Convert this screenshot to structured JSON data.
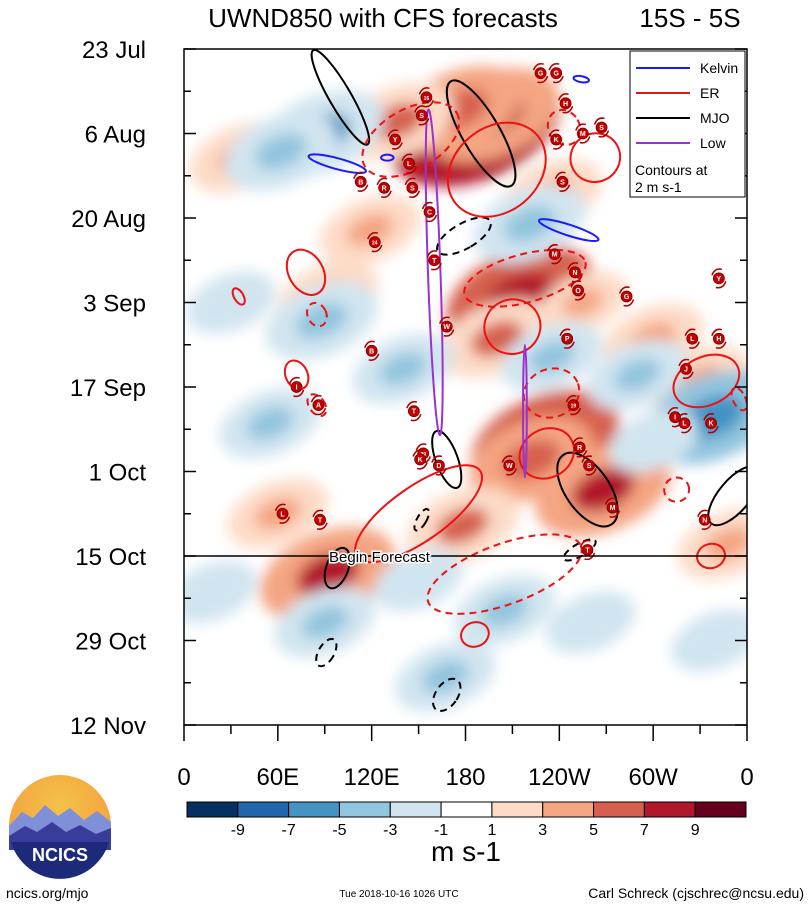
{
  "chart_data": {
    "type": "hovmoller-heatmap",
    "title": "UWND850 with CFS forecasts",
    "region": "15S - 5S",
    "variable": "850-hPa zonal wind anomaly",
    "x_axis": {
      "label": "",
      "range_deg_east": [
        0,
        360
      ],
      "ticks": [
        {
          "lon": 0,
          "label": "0"
        },
        {
          "lon": 60,
          "label": "60E"
        },
        {
          "lon": 120,
          "label": "120E"
        },
        {
          "lon": 180,
          "label": "180"
        },
        {
          "lon": 240,
          "label": "120W"
        },
        {
          "lon": 300,
          "label": "60W"
        },
        {
          "lon": 360,
          "label": "0"
        }
      ]
    },
    "y_axis": {
      "label": "",
      "unit": "days since 23 Jul",
      "range": [
        0,
        112
      ],
      "ticks": [
        {
          "day": 0,
          "label": "23 Jul"
        },
        {
          "day": 14,
          "label": "6 Aug"
        },
        {
          "day": 28,
          "label": "20 Aug"
        },
        {
          "day": 42,
          "label": "3 Sep"
        },
        {
          "day": 56,
          "label": "17 Sep"
        },
        {
          "day": 70,
          "label": "1 Oct"
        },
        {
          "day": 84,
          "label": "15 Oct"
        },
        {
          "day": 98,
          "label": "29 Oct"
        },
        {
          "day": 112,
          "label": "12 Nov"
        }
      ]
    },
    "forecast_line": {
      "day": 84,
      "label": "Begin Forecast"
    },
    "colorbar": {
      "unit": "m s-1",
      "levels": [
        -11,
        -9,
        -7,
        -5,
        -3,
        -1,
        1,
        3,
        5,
        7,
        9,
        11
      ],
      "tick_labels": [
        "-9",
        "-7",
        "-5",
        "-3",
        "-1",
        "1",
        "3",
        "5",
        "7",
        "9"
      ],
      "colors": [
        "#053061",
        "#2166ac",
        "#4393c3",
        "#92c5de",
        "#d1e5f0",
        "#ffffff",
        "#fddbc7",
        "#f4a582",
        "#d6604d",
        "#b2182b",
        "#67001f"
      ]
    },
    "legend": {
      "entries": [
        {
          "name": "Kelvin",
          "color": "#1a1aff"
        },
        {
          "name": "ER",
          "color": "#ee1111"
        },
        {
          "name": "MJO",
          "color": "#000000"
        },
        {
          "name": "Low",
          "color": "#9933cc"
        }
      ],
      "note_line1": "Contours at",
      "note_line2": "2 m s-1"
    },
    "anomalies": [
      {
        "lon": 186,
        "day": 13,
        "value": 10
      },
      {
        "lon": 197,
        "day": 11,
        "value": 7
      },
      {
        "lon": 176,
        "day": 10,
        "value": 6
      },
      {
        "lon": 215,
        "day": 41,
        "value": 8
      },
      {
        "lon": 231,
        "day": 65,
        "value": 8
      },
      {
        "lon": 222,
        "day": 68,
        "value": 6
      },
      {
        "lon": 200,
        "day": 48,
        "value": 5
      },
      {
        "lon": 268,
        "day": 73,
        "value": 7
      },
      {
        "lon": 92,
        "day": 87,
        "value": 7
      },
      {
        "lon": 137,
        "day": 12,
        "value": 5
      },
      {
        "lon": 235,
        "day": 24,
        "value": 4
      },
      {
        "lon": 330,
        "day": 55,
        "value": 4
      },
      {
        "lon": 36,
        "day": 18,
        "value": 4
      },
      {
        "lon": 119,
        "day": 30,
        "value": 4
      },
      {
        "lon": 92,
        "day": 41,
        "value": 4
      },
      {
        "lon": 300,
        "day": 48,
        "value": 4
      },
      {
        "lon": 178,
        "day": 79,
        "value": 5
      },
      {
        "lon": 348,
        "day": 82,
        "value": 4
      },
      {
        "lon": 60,
        "day": 77,
        "value": 4
      },
      {
        "lon": 255,
        "day": 42,
        "value": 3
      },
      {
        "lon": 88,
        "day": 14,
        "value": -6
      },
      {
        "lon": 62,
        "day": 17,
        "value": -5
      },
      {
        "lon": 221,
        "day": 29,
        "value": -5
      },
      {
        "lon": 338,
        "day": 61,
        "value": -7
      },
      {
        "lon": 290,
        "day": 54,
        "value": -4
      },
      {
        "lon": 88,
        "day": 45,
        "value": -5
      },
      {
        "lon": 235,
        "day": 51,
        "value": -4
      },
      {
        "lon": 90,
        "day": 95,
        "value": -4
      },
      {
        "lon": 167,
        "day": 104,
        "value": -4
      },
      {
        "lon": 30,
        "day": 42,
        "value": -3
      },
      {
        "lon": 260,
        "day": 95,
        "value": -3
      },
      {
        "lon": 140,
        "day": 53,
        "value": -4
      },
      {
        "lon": 55,
        "day": 62,
        "value": -4
      },
      {
        "lon": 300,
        "day": 65,
        "value": -3
      },
      {
        "lon": 205,
        "day": 93,
        "value": -4
      },
      {
        "lon": 18,
        "day": 90,
        "value": -3
      },
      {
        "lon": 340,
        "day": 98,
        "value": -3
      },
      {
        "lon": 150,
        "day": 88,
        "value": -3
      }
    ],
    "filtered_contours": [
      {
        "wave": "MJO",
        "style": "solid",
        "lon": 100,
        "day": 8,
        "rx": 7,
        "ry": 9,
        "angle": -30
      },
      {
        "wave": "MJO",
        "style": "solid",
        "lon": 190,
        "day": 14,
        "rx": 12,
        "ry": 10,
        "angle": -30
      },
      {
        "wave": "MJO",
        "style": "solid",
        "lon": 168,
        "day": 68,
        "value_note": "S-shaped",
        "rx": 7,
        "ry": 5,
        "angle": -20
      },
      {
        "wave": "MJO",
        "style": "solid",
        "lon": 258,
        "day": 73,
        "rx": 14,
        "ry": 7,
        "angle": -35
      },
      {
        "wave": "MJO",
        "style": "solid",
        "lon": 98,
        "day": 86,
        "rx": 7,
        "ry": 3.5,
        "angle": 20
      },
      {
        "wave": "MJO",
        "style": "solid",
        "lon": 352,
        "day": 74,
        "rx": 10,
        "ry": 6,
        "angle": 40
      },
      {
        "wave": "MJO",
        "style": "dashed",
        "lon": 179,
        "day": 31,
        "rx": 8,
        "ry": 5,
        "angle": 60
      },
      {
        "wave": "MJO",
        "style": "dashed",
        "lon": 253,
        "day": 83,
        "rx": 4,
        "ry": 3,
        "angle": 60
      },
      {
        "wave": "MJO",
        "style": "dashed",
        "lon": 91,
        "day": 100,
        "rx": 5,
        "ry": 2.5,
        "angle": 30
      },
      {
        "wave": "MJO",
        "style": "dashed",
        "lon": 168,
        "day": 107,
        "rx": 7,
        "ry": 3,
        "angle": 35
      },
      {
        "wave": "MJO",
        "style": "dashed",
        "lon": 152,
        "day": 78,
        "rx": 3,
        "ry": 2,
        "angle": 30
      },
      {
        "wave": "ER",
        "style": "solid",
        "lon": 200,
        "day": 20,
        "rx": 34,
        "ry": 7,
        "angle": -40
      },
      {
        "wave": "ER",
        "style": "solid",
        "lon": 263,
        "day": 18,
        "rx": 16,
        "ry": 4,
        "angle": -30
      },
      {
        "wave": "ER",
        "style": "solid",
        "lon": 78,
        "day": 37,
        "rx": 11,
        "ry": 4,
        "angle": -30
      },
      {
        "wave": "ER",
        "style": "solid",
        "lon": 210,
        "day": 46,
        "rx": 18,
        "ry": 4.5,
        "angle": -25
      },
      {
        "wave": "ER",
        "style": "solid",
        "lon": 232,
        "day": 67,
        "rx": 18,
        "ry": 4,
        "angle": -30
      },
      {
        "wave": "ER",
        "style": "solid",
        "lon": 150,
        "day": 77,
        "rx": 48,
        "ry": 4.5,
        "angle": -35
      },
      {
        "wave": "ER",
        "style": "solid",
        "lon": 334,
        "day": 55,
        "rx": 22,
        "ry": 4,
        "angle": -25
      },
      {
        "wave": "ER",
        "style": "solid",
        "lon": 186,
        "day": 97,
        "rx": 9,
        "ry": 2,
        "angle": -20
      },
      {
        "wave": "ER",
        "style": "solid",
        "lon": 337,
        "day": 84,
        "rx": 9,
        "ry": 2,
        "angle": -15
      },
      {
        "wave": "ER",
        "style": "solid",
        "lon": 72,
        "day": 54,
        "rx": 7,
        "ry": 2.5,
        "angle": -25
      },
      {
        "wave": "ER",
        "style": "solid",
        "lon": 35,
        "day": 41,
        "rx": 3,
        "ry": 1.5,
        "angle": -30
      },
      {
        "wave": "ER",
        "style": "dashed",
        "lon": 145,
        "day": 15,
        "rx": 34,
        "ry": 5,
        "angle": -30
      },
      {
        "wave": "ER",
        "style": "dashed",
        "lon": 243,
        "day": 13,
        "rx": 10,
        "ry": 3,
        "angle": -30
      },
      {
        "wave": "ER",
        "style": "dashed",
        "lon": 218,
        "day": 38,
        "rx": 40,
        "ry": 4,
        "angle": -15
      },
      {
        "wave": "ER",
        "style": "dashed",
        "lon": 235,
        "day": 57,
        "rx": 18,
        "ry": 4,
        "angle": -20
      },
      {
        "wave": "ER",
        "style": "dashed",
        "lon": 205,
        "day": 87,
        "rx": 52,
        "ry": 5,
        "angle": -20
      },
      {
        "wave": "ER",
        "style": "dashed",
        "lon": 85,
        "day": 44,
        "rx": 6,
        "ry": 2,
        "angle": -25
      },
      {
        "wave": "ER",
        "style": "dashed",
        "lon": 85,
        "day": 59,
        "rx": 5,
        "ry": 2,
        "angle": -35
      },
      {
        "wave": "ER",
        "style": "dashed",
        "lon": 315,
        "day": 73,
        "rx": 8,
        "ry": 2,
        "angle": -15
      },
      {
        "wave": "ER",
        "style": "dashed",
        "lon": 355,
        "day": 58,
        "rx": 4,
        "ry": 2,
        "angle": -25
      },
      {
        "wave": "Kelvin",
        "style": "solid",
        "lon": 98,
        "day": 19,
        "rx": 19,
        "ry": 0.9,
        "angle": 15
      },
      {
        "wave": "Kelvin",
        "style": "solid",
        "lon": 246,
        "day": 30,
        "rx": 20,
        "ry": 0.9,
        "angle": 18
      },
      {
        "wave": "Kelvin",
        "style": "solid",
        "lon": 254,
        "day": 5,
        "rx": 5,
        "ry": 0.5,
        "angle": 10
      },
      {
        "wave": "Kelvin",
        "style": "solid",
        "lon": 130,
        "day": 18,
        "rx": 4,
        "ry": 0.5,
        "angle": 0
      },
      {
        "wave": "Low",
        "style": "solid",
        "lon": 160,
        "day": 37,
        "rx": 4,
        "ry": 27,
        "angle": -2
      },
      {
        "wave": "Low",
        "style": "solid",
        "lon": 218,
        "day": 60,
        "rx": 1.2,
        "ry": 11,
        "angle": 0
      }
    ],
    "storm_markers": [
      {
        "lon": 228,
        "day": 4,
        "label": "G"
      },
      {
        "lon": 238,
        "day": 4,
        "label": "G"
      },
      {
        "lon": 155,
        "day": 8,
        "label": "16"
      },
      {
        "lon": 152,
        "day": 11,
        "label": "S"
      },
      {
        "lon": 244,
        "day": 9,
        "label": "H"
      },
      {
        "lon": 135,
        "day": 15,
        "label": "Y"
      },
      {
        "lon": 238,
        "day": 15,
        "label": "K"
      },
      {
        "lon": 255,
        "day": 14,
        "label": "M"
      },
      {
        "lon": 267,
        "day": 13,
        "label": "S"
      },
      {
        "lon": 144,
        "day": 19,
        "label": "L"
      },
      {
        "lon": 113,
        "day": 22,
        "label": "B"
      },
      {
        "lon": 128,
        "day": 23,
        "label": "R"
      },
      {
        "lon": 146,
        "day": 23,
        "label": "S"
      },
      {
        "lon": 242,
        "day": 22,
        "label": "S"
      },
      {
        "lon": 157,
        "day": 27,
        "label": "C"
      },
      {
        "lon": 122,
        "day": 32,
        "label": "24"
      },
      {
        "lon": 160,
        "day": 35,
        "label": "T"
      },
      {
        "lon": 237,
        "day": 34,
        "label": "M"
      },
      {
        "lon": 250,
        "day": 37,
        "label": "N"
      },
      {
        "lon": 252,
        "day": 40,
        "label": "O"
      },
      {
        "lon": 283,
        "day": 41,
        "label": "G"
      },
      {
        "lon": 342,
        "day": 38,
        "label": "Y"
      },
      {
        "lon": 168,
        "day": 46,
        "label": "W"
      },
      {
        "lon": 245,
        "day": 48,
        "label": "P"
      },
      {
        "lon": 325,
        "day": 48,
        "label": "L"
      },
      {
        "lon": 342,
        "day": 48,
        "label": "H"
      },
      {
        "lon": 120,
        "day": 50,
        "label": "B"
      },
      {
        "lon": 321,
        "day": 53,
        "label": "J"
      },
      {
        "lon": 72,
        "day": 56,
        "label": "I"
      },
      {
        "lon": 249,
        "day": 59,
        "label": "19"
      },
      {
        "lon": 86,
        "day": 59,
        "label": "A"
      },
      {
        "lon": 147,
        "day": 60,
        "label": "T"
      },
      {
        "lon": 314,
        "day": 61,
        "label": "I"
      },
      {
        "lon": 320,
        "day": 62,
        "label": "L"
      },
      {
        "lon": 337,
        "day": 62,
        "label": "K"
      },
      {
        "lon": 153,
        "day": 67,
        "label": "29"
      },
      {
        "lon": 151,
        "day": 68,
        "label": "K"
      },
      {
        "lon": 163,
        "day": 69,
        "label": "D"
      },
      {
        "lon": 208,
        "day": 69,
        "label": "W"
      },
      {
        "lon": 253,
        "day": 66,
        "label": "R"
      },
      {
        "lon": 259,
        "day": 69,
        "label": "S"
      },
      {
        "lon": 274,
        "day": 76,
        "label": "M"
      },
      {
        "lon": 63,
        "day": 77,
        "label": "L"
      },
      {
        "lon": 87,
        "day": 78,
        "label": "T"
      },
      {
        "lon": 333,
        "day": 78,
        "label": "N"
      },
      {
        "lon": 258,
        "day": 83,
        "label": "T"
      }
    ]
  },
  "footer": {
    "logo_text": "NCICS",
    "url": "ncics.org/mjo",
    "timestamp": "Tue 2018-10-16 1026 UTC",
    "author": "Carl Schreck (cjschrec@ncsu.edu)"
  }
}
